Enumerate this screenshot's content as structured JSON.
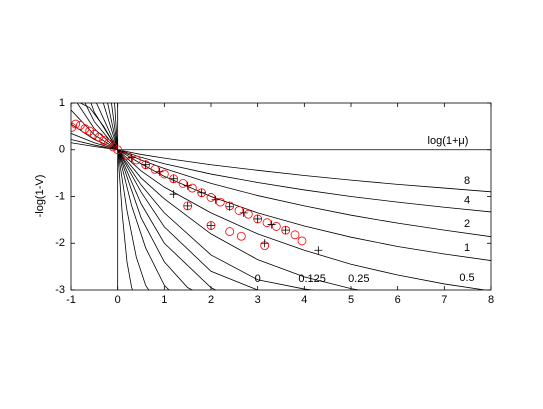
{
  "chart_data": {
    "type": "line",
    "x_annotation": "log(1+μ)",
    "ylabel": "-log(1-V)",
    "xlim": [
      -1,
      8
    ],
    "ylim": [
      -3,
      1
    ],
    "xticks": [
      -1,
      0,
      1,
      2,
      3,
      4,
      5,
      6,
      7,
      8
    ],
    "yticks": [
      -3,
      -2,
      -1,
      0,
      1
    ],
    "series": [
      {
        "name": "8",
        "color": "#000000",
        "x": [
          -1,
          -0.5,
          0,
          0.5,
          1,
          2,
          3,
          4,
          5,
          6,
          7,
          8
        ],
        "values": [
          0.15,
          0.07,
          0,
          -0.1,
          -0.18,
          -0.32,
          -0.44,
          -0.55,
          -0.65,
          -0.74,
          -0.82,
          -0.9
        ]
      },
      {
        "name": "4",
        "color": "#000000",
        "x": [
          -1,
          -0.5,
          0,
          0.5,
          1,
          2,
          3,
          4,
          5,
          6,
          7,
          8
        ],
        "values": [
          0.22,
          0.1,
          0,
          -0.16,
          -0.3,
          -0.52,
          -0.7,
          -0.86,
          -1.0,
          -1.12,
          -1.23,
          -1.33
        ]
      },
      {
        "name": "2",
        "color": "#000000",
        "x": [
          -1,
          -0.5,
          0,
          0.5,
          1,
          2,
          3,
          4,
          5,
          6,
          7,
          8
        ],
        "values": [
          0.35,
          0.15,
          0,
          -0.22,
          -0.4,
          -0.72,
          -0.98,
          -1.2,
          -1.4,
          -1.57,
          -1.72,
          -1.86
        ]
      },
      {
        "name": "1",
        "color": "#000000",
        "x": [
          -1,
          -0.5,
          0,
          0.5,
          1,
          2,
          3,
          4,
          5,
          6,
          7,
          8
        ],
        "values": [
          0.55,
          0.22,
          0,
          -0.3,
          -0.57,
          -1.0,
          -1.35,
          -1.63,
          -1.87,
          -2.07,
          -2.23,
          -2.37
        ]
      },
      {
        "name": "0.5",
        "color": "#000000",
        "x": [
          -1,
          -0.5,
          0,
          0.5,
          1,
          2,
          3,
          4,
          5,
          6,
          7,
          8
        ],
        "values": [
          0.85,
          0.32,
          0,
          -0.45,
          -0.8,
          -1.35,
          -1.8,
          -2.15,
          -2.45,
          -2.68,
          -2.87,
          -3.02
        ]
      },
      {
        "name": "0.25",
        "color": "#000000",
        "x": [
          -1,
          -0.5,
          0,
          0.5,
          1,
          2,
          3,
          4,
          5,
          6
        ],
        "values": [
          1.2,
          0.45,
          0,
          -0.6,
          -1.05,
          -1.8,
          -2.35,
          -2.72,
          -2.97,
          -3.15
        ]
      },
      {
        "name": "0.125",
        "color": "#000000",
        "x": [
          -1,
          -0.5,
          0,
          0.5,
          1,
          2,
          3,
          4,
          5
        ],
        "values": [
          1.6,
          0.6,
          0,
          -0.75,
          -1.35,
          -2.25,
          -2.78,
          -2.98,
          -3.1
        ]
      },
      {
        "name": "0",
        "color": "#000000",
        "x": [
          -1,
          -0.5,
          0,
          0.5,
          1,
          2,
          3,
          4
        ],
        "values": [
          2.2,
          0.8,
          0,
          -0.9,
          -1.65,
          -2.6,
          -3.0,
          -3.2
        ]
      },
      {
        "color": "#000000",
        "x": [
          -0.5,
          0,
          0.5,
          1,
          2,
          2.5
        ],
        "values": [
          1.1,
          0,
          -1.15,
          -2.0,
          -2.95,
          -3.2
        ]
      },
      {
        "color": "#000000",
        "x": [
          -0.4,
          0,
          0.5,
          1,
          1.5,
          2
        ],
        "values": [
          1.3,
          0,
          -1.45,
          -2.4,
          -2.95,
          -3.2
        ]
      },
      {
        "color": "#000000",
        "x": [
          -0.3,
          0,
          0.3,
          0.6,
          1,
          1.3
        ],
        "values": [
          1.4,
          0,
          -1.2,
          -2.1,
          -2.9,
          -3.2
        ]
      },
      {
        "color": "#000000",
        "x": [
          -0.2,
          0,
          0.2,
          0.4,
          0.6,
          0.8
        ],
        "values": [
          1.5,
          0,
          -1.3,
          -2.3,
          -2.9,
          -3.2
        ]
      },
      {
        "color": "#000000",
        "x": [
          -0.1,
          0,
          0.1,
          0.2,
          0.3,
          0.4
        ],
        "values": [
          1.5,
          0,
          -1.4,
          -2.4,
          -2.95,
          -3.2
        ]
      },
      {
        "color": "#000000",
        "x": [
          -1,
          -0.6,
          -0.3,
          0
        ],
        "values": [
          1.1,
          0.9,
          0.5,
          0
        ]
      },
      {
        "color": "#000000",
        "x": [
          0,
          8
        ],
        "values": [
          0,
          0
        ]
      },
      {
        "color": "#000000",
        "x": [
          0,
          0
        ],
        "values": [
          -3,
          1
        ]
      },
      {
        "color": "#ff0000",
        "marker": "o",
        "x": [
          -0.98,
          -0.9,
          -0.8,
          -0.7,
          -0.6,
          -0.5,
          -0.4,
          -0.3,
          -0.2,
          -0.1,
          0,
          0.2,
          0.4,
          0.6,
          0.8,
          1.0,
          1.2,
          1.4,
          1.6,
          1.8,
          2.0,
          2.2,
          2.4,
          2.6,
          2.8,
          3.0,
          3.2,
          3.4,
          3.6,
          3.8,
          3.95,
          1.5,
          2.0,
          2.4,
          2.65,
          3.15
        ],
        "values": [
          0.48,
          0.55,
          0.52,
          0.45,
          0.4,
          0.33,
          0.27,
          0.2,
          0.13,
          0.06,
          0,
          -0.12,
          -0.22,
          -0.32,
          -0.42,
          -0.52,
          -0.62,
          -0.72,
          -0.82,
          -0.92,
          -1.02,
          -1.12,
          -1.2,
          -1.3,
          -1.38,
          -1.48,
          -1.56,
          -1.64,
          -1.72,
          -1.82,
          -1.95,
          -1.2,
          -1.62,
          -1.75,
          -1.85,
          -2.05
        ]
      },
      {
        "color": "#000000",
        "marker": "+",
        "x": [
          0.3,
          0.6,
          0.9,
          1.2,
          1.5,
          1.8,
          2.1,
          2.4,
          2.7,
          3.0,
          3.3,
          3.6,
          1.2,
          1.5,
          2.0,
          3.15,
          4.3
        ],
        "values": [
          -0.17,
          -0.32,
          -0.47,
          -0.62,
          -0.77,
          -0.92,
          -1.07,
          -1.22,
          -1.35,
          -1.48,
          -1.6,
          -1.72,
          -0.95,
          -1.2,
          -1.62,
          -2.0,
          -2.15
        ]
      }
    ]
  }
}
